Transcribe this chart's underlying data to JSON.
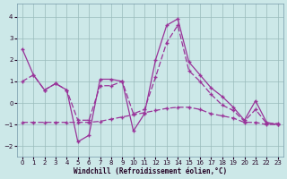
{
  "xlabel": "Windchill (Refroidissement éolien,°C)",
  "bg_color": "#cce8e8",
  "line_color": "#993399",
  "grid_color": "#99bbbb",
  "spine_color": "#7799aa",
  "xlim": [
    -0.5,
    23.5
  ],
  "ylim": [
    -2.5,
    4.6
  ],
  "yticks": [
    -2,
    -1,
    0,
    1,
    2,
    3,
    4
  ],
  "xticks": [
    0,
    1,
    2,
    3,
    4,
    5,
    6,
    7,
    8,
    9,
    10,
    11,
    12,
    13,
    14,
    15,
    16,
    17,
    18,
    19,
    20,
    21,
    22,
    23
  ],
  "s1_x": [
    0,
    1,
    2,
    3,
    4,
    5,
    6,
    7,
    8,
    9,
    10,
    11,
    12,
    13,
    14,
    15,
    16,
    17,
    18,
    19,
    20,
    21,
    22,
    23
  ],
  "s1_y": [
    2.5,
    1.3,
    0.6,
    0.9,
    0.6,
    -1.8,
    -1.5,
    1.1,
    1.1,
    1.0,
    -1.3,
    -0.5,
    2.0,
    3.6,
    3.9,
    1.9,
    1.3,
    0.7,
    0.3,
    -0.2,
    -0.8,
    0.1,
    -0.9,
    -1.0
  ],
  "s2_x": [
    0,
    1,
    2,
    3,
    4,
    5,
    6,
    7,
    8,
    9,
    10,
    11,
    12,
    13,
    14,
    15,
    16,
    17,
    18,
    19,
    20,
    21,
    22,
    23
  ],
  "s2_y": [
    1.0,
    1.3,
    0.6,
    0.9,
    0.6,
    -0.8,
    -0.8,
    0.8,
    0.8,
    1.0,
    -0.5,
    -0.3,
    1.2,
    2.8,
    3.6,
    1.5,
    1.0,
    0.4,
    -0.1,
    -0.35,
    -0.85,
    -0.3,
    -0.95,
    -0.95
  ],
  "s3_x": [
    0,
    1,
    2,
    3,
    4,
    5,
    6,
    7,
    8,
    9,
    10,
    11,
    12,
    13,
    14,
    15,
    16,
    17,
    18,
    19,
    20,
    21,
    22,
    23
  ],
  "s3_y": [
    -0.9,
    -0.9,
    -0.9,
    -0.9,
    -0.9,
    -0.9,
    -0.9,
    -0.85,
    -0.75,
    -0.65,
    -0.55,
    -0.45,
    -0.35,
    -0.25,
    -0.2,
    -0.2,
    -0.3,
    -0.5,
    -0.6,
    -0.7,
    -0.9,
    -0.9,
    -1.0,
    -1.0
  ],
  "marker": "+",
  "markersize": 3.5,
  "linewidth": 0.9,
  "tick_fontsize": 5,
  "xlabel_fontsize": 5.5
}
